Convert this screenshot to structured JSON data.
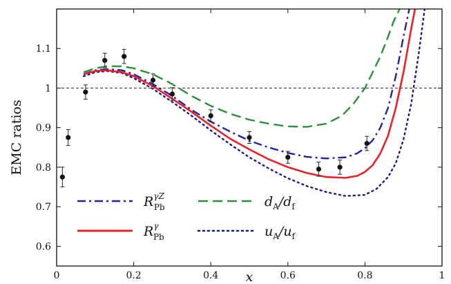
{
  "chart_data": {
    "type": "line",
    "title": "",
    "xlabel": "x",
    "ylabel": "EMC ratios",
    "xlim": [
      0,
      1
    ],
    "ylim": [
      0.55,
      1.2
    ],
    "x_ticks": [
      "0",
      "0.2",
      "0.4",
      "0.6",
      "0.8",
      "1"
    ],
    "y_ticks": [
      "0.6",
      "0.7",
      "0.8",
      "0.9",
      "1",
      "1.1"
    ],
    "reference_line": {
      "y": 1.0,
      "style": "dashed"
    },
    "series": [
      {
        "name": "R^{γZ}_{Pb}",
        "legend_main": "R",
        "legend_sup": "γZ",
        "legend_sub": "Pb",
        "style": "dashdot",
        "color": "#22229a",
        "x": [
          0.07,
          0.1,
          0.13,
          0.17,
          0.2,
          0.25,
          0.3,
          0.35,
          0.4,
          0.45,
          0.5,
          0.55,
          0.6,
          0.65,
          0.7,
          0.75,
          0.78,
          0.8,
          0.82,
          0.84,
          0.86,
          0.88,
          0.9,
          0.915
        ],
        "y": [
          1.035,
          1.045,
          1.048,
          1.045,
          1.035,
          1.01,
          0.98,
          0.945,
          0.915,
          0.89,
          0.867,
          0.85,
          0.836,
          0.826,
          0.822,
          0.825,
          0.835,
          0.848,
          0.868,
          0.9,
          0.95,
          1.03,
          1.13,
          1.2
        ]
      },
      {
        "name": "R^{γ}_{Pb}",
        "legend_main": "R",
        "legend_sup": "γ",
        "legend_sub": "Pb",
        "style": "solid",
        "color": "#e8202a",
        "x": [
          0.07,
          0.1,
          0.13,
          0.17,
          0.2,
          0.25,
          0.3,
          0.35,
          0.4,
          0.45,
          0.5,
          0.55,
          0.6,
          0.65,
          0.7,
          0.75,
          0.78,
          0.8,
          0.82,
          0.84,
          0.86,
          0.88,
          0.9,
          0.92,
          0.93
        ],
        "y": [
          1.035,
          1.043,
          1.045,
          1.04,
          1.03,
          1.005,
          0.973,
          0.94,
          0.905,
          0.872,
          0.845,
          0.82,
          0.8,
          0.785,
          0.775,
          0.773,
          0.778,
          0.788,
          0.805,
          0.835,
          0.88,
          0.95,
          1.04,
          1.15,
          1.2
        ]
      },
      {
        "name": "d_A/d_f",
        "legend_main": "d",
        "legend_sub": "A",
        "legend_slash": "/",
        "legend_main2": "d",
        "legend_sub2": "f",
        "style": "dashed",
        "color": "#2e8b3a",
        "x": [
          0.07,
          0.1,
          0.13,
          0.17,
          0.2,
          0.25,
          0.3,
          0.35,
          0.4,
          0.45,
          0.5,
          0.55,
          0.6,
          0.65,
          0.7,
          0.74,
          0.77,
          0.8,
          0.82,
          0.84,
          0.86,
          0.875,
          0.89
        ],
        "y": [
          1.04,
          1.05,
          1.055,
          1.055,
          1.05,
          1.035,
          1.01,
          0.98,
          0.955,
          0.935,
          0.92,
          0.91,
          0.903,
          0.902,
          0.91,
          0.93,
          0.96,
          1.0,
          1.04,
          1.08,
          1.13,
          1.17,
          1.2
        ]
      },
      {
        "name": "u_A/u_f",
        "legend_main": "u",
        "legend_sub": "A",
        "legend_slash": "/",
        "legend_main2": "u",
        "legend_sub2": "f",
        "style": "dotted",
        "color": "#1a1a7a",
        "x": [
          0.07,
          0.1,
          0.13,
          0.17,
          0.2,
          0.25,
          0.3,
          0.35,
          0.4,
          0.45,
          0.5,
          0.55,
          0.6,
          0.65,
          0.7,
          0.75,
          0.8,
          0.83,
          0.86,
          0.88,
          0.9,
          0.92,
          0.94,
          0.955
        ],
        "y": [
          1.03,
          1.04,
          1.043,
          1.038,
          1.025,
          0.998,
          0.965,
          0.93,
          0.893,
          0.858,
          0.825,
          0.797,
          0.772,
          0.752,
          0.737,
          0.727,
          0.73,
          0.745,
          0.775,
          0.81,
          0.87,
          0.96,
          1.09,
          1.2
        ]
      }
    ],
    "data_points": {
      "name": "data",
      "color": "#111111",
      "x": [
        0.015,
        0.03,
        0.075,
        0.125,
        0.175,
        0.25,
        0.3,
        0.4,
        0.5,
        0.6,
        0.68,
        0.735,
        0.805
      ],
      "y": [
        0.775,
        0.875,
        0.99,
        1.07,
        1.08,
        1.02,
        0.985,
        0.93,
        0.875,
        0.825,
        0.795,
        0.8,
        0.86
      ],
      "err": [
        0.025,
        0.02,
        0.018,
        0.018,
        0.018,
        0.016,
        0.016,
        0.015,
        0.015,
        0.015,
        0.018,
        0.018,
        0.018
      ]
    }
  }
}
